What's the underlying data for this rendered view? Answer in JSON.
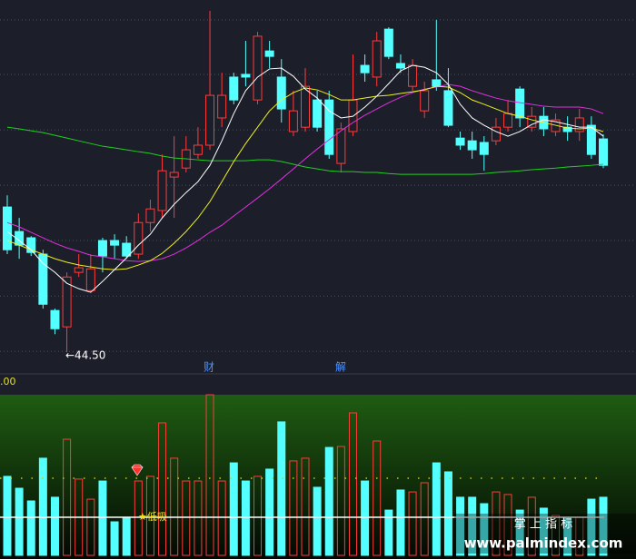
{
  "chart_data": [
    {
      "type": "candlestick",
      "ylim": [
        43.77,
        57.43
      ],
      "grid_levels": [
        56.7,
        54.7,
        52.66,
        50.63,
        48.6,
        46.56,
        44.53
      ],
      "up_color": "#ff3b3b",
      "down_color": "#54ffff",
      "open": [
        49.83,
        48.93,
        48.7,
        48.1,
        46.03,
        45.43,
        47.43,
        46.76,
        48.6,
        48.6,
        48.5,
        48.1,
        49.26,
        49.7,
        50.93,
        51.26,
        51.76,
        52.1,
        53.1,
        54.6,
        54.7,
        53.76,
        55.56,
        54.6,
        52.6,
        52.76,
        53.76,
        53.76,
        51.43,
        52.6,
        55.03,
        54.6,
        56.36,
        55.1,
        54.26,
        53.36,
        54.5,
        54.1,
        52.36,
        52.26,
        52.2,
        52.26,
        52.76,
        54.16,
        52.76,
        53.16,
        52.6,
        52.76,
        52.6,
        52.83,
        52.33
      ],
      "high": [
        50.26,
        49.43,
        48.76,
        48.26,
        46.1,
        47.43,
        48.1,
        48.1,
        48.7,
        48.83,
        48.76,
        49.6,
        50.1,
        51.76,
        52.43,
        52.43,
        52.76,
        57.03,
        54.76,
        54.76,
        55.93,
        56.26,
        55.93,
        55.26,
        54.1,
        54.93,
        54.1,
        54.1,
        52.93,
        55.43,
        55.43,
        56.26,
        56.43,
        55.43,
        55.26,
        54.43,
        56.7,
        54.93,
        52.6,
        52.6,
        52.43,
        53.1,
        53.76,
        54.26,
        53.5,
        53.5,
        53.26,
        53.16,
        53.43,
        53.16,
        52.5
      ],
      "low": [
        48.1,
        47.93,
        48.03,
        46.1,
        45.16,
        44.5,
        47.26,
        46.7,
        47.43,
        47.93,
        47.93,
        47.93,
        48.93,
        49.43,
        49.43,
        51.1,
        51.6,
        51.93,
        52.76,
        53.6,
        54.26,
        53.6,
        54.93,
        52.93,
        52.43,
        52.6,
        52.6,
        51.6,
        51.1,
        52.43,
        54.43,
        54.26,
        55.26,
        54.76,
        54.1,
        53.1,
        54.1,
        52.76,
        51.93,
        51.6,
        51.16,
        52.1,
        52.6,
        52.76,
        52.6,
        52.43,
        52.43,
        52.26,
        52.26,
        51.6,
        51.26
      ],
      "close": [
        48.26,
        48.43,
        48.16,
        46.26,
        45.36,
        47.26,
        47.6,
        47.56,
        48.03,
        48.43,
        48.03,
        49.26,
        49.76,
        51.16,
        51.1,
        51.93,
        52.1,
        53.93,
        53.93,
        53.76,
        54.6,
        56.1,
        55.36,
        53.43,
        53.36,
        54.26,
        52.76,
        51.76,
        52.7,
        53.76,
        54.76,
        55.93,
        55.36,
        54.93,
        55.03,
        54.1,
        54.26,
        52.83,
        52.1,
        51.93,
        51.76,
        52.76,
        53.26,
        53.1,
        53.16,
        52.7,
        53.03,
        52.6,
        53.1,
        51.76,
        51.36
      ],
      "lines": [
        {
          "color": "#20d020",
          "values": [
            52.76,
            52.7,
            52.63,
            52.56,
            52.46,
            52.36,
            52.26,
            52.16,
            52.06,
            52.0,
            51.93,
            51.86,
            51.8,
            51.7,
            51.63,
            51.6,
            51.56,
            51.53,
            51.53,
            51.53,
            51.53,
            51.56,
            51.56,
            51.5,
            51.4,
            51.3,
            51.23,
            51.16,
            51.13,
            51.13,
            51.1,
            51.1,
            51.06,
            51.03,
            51.03,
            51.03,
            51.03,
            51.03,
            51.03,
            51.03,
            51.06,
            51.1,
            51.13,
            51.16,
            51.2,
            51.23,
            51.26,
            51.3,
            51.33,
            51.36,
            51.4
          ]
        },
        {
          "color": "#e030e0",
          "values": [
            49.26,
            49.1,
            48.9,
            48.7,
            48.5,
            48.33,
            48.2,
            48.06,
            48.0,
            47.93,
            47.86,
            47.83,
            47.86,
            47.93,
            48.1,
            48.33,
            48.6,
            48.9,
            49.16,
            49.5,
            49.83,
            50.16,
            50.5,
            50.86,
            51.23,
            51.6,
            51.96,
            52.3,
            52.63,
            52.93,
            53.2,
            53.43,
            53.66,
            53.86,
            54.03,
            54.16,
            54.23,
            54.33,
            54.26,
            54.1,
            53.96,
            53.83,
            53.73,
            53.66,
            53.6,
            53.53,
            53.5,
            53.5,
            53.5,
            53.43,
            53.26
          ]
        },
        {
          "color": "#f0f020",
          "values": [
            48.6,
            48.43,
            48.26,
            48.1,
            47.93,
            47.8,
            47.7,
            47.63,
            47.56,
            47.53,
            47.56,
            47.7,
            47.86,
            48.13,
            48.5,
            48.93,
            49.43,
            50.03,
            50.76,
            51.5,
            52.16,
            52.76,
            53.36,
            53.76,
            54.03,
            54.2,
            54.13,
            53.96,
            53.76,
            53.76,
            53.83,
            53.9,
            53.93,
            54.0,
            54.06,
            54.13,
            54.26,
            54.23,
            54.03,
            53.76,
            53.6,
            53.43,
            53.26,
            53.16,
            53.03,
            52.93,
            52.83,
            52.73,
            52.7,
            52.73,
            52.6
          ]
        },
        {
          "color": "#ffffff",
          "values": [
            48.93,
            48.6,
            48.26,
            47.76,
            47.43,
            47.03,
            46.83,
            46.7,
            47.1,
            47.53,
            47.96,
            48.43,
            48.83,
            49.43,
            49.93,
            50.36,
            50.76,
            51.36,
            52.26,
            53.26,
            54.1,
            54.6,
            54.9,
            54.93,
            54.63,
            54.16,
            53.83,
            53.36,
            53.1,
            53.16,
            53.5,
            53.9,
            54.36,
            54.83,
            55.03,
            54.96,
            54.76,
            54.33,
            53.6,
            53.1,
            52.83,
            52.6,
            52.43,
            52.6,
            52.86,
            53.03,
            52.96,
            52.86,
            52.76,
            52.76,
            52.43
          ]
        }
      ],
      "annotations": [
        "←44.50",
        "财",
        "解"
      ]
    },
    {
      "type": "bar",
      "ylim": [
        0,
        100
      ],
      "header": ".00",
      "values": [
        49.2,
        41.8,
        33.9,
        60.5,
        36.2,
        72.3,
        47.5,
        35.0,
        46.3,
        20.9,
        23.7,
        46.3,
        49.2,
        82.5,
        60.5,
        46.3,
        46.3,
        100,
        46.3,
        57.6,
        46.3,
        49.2,
        53.7,
        83.1,
        58.8,
        60.5,
        42.4,
        67.2,
        67.8,
        88.7,
        46.3,
        71.2,
        28.2,
        40.7,
        39.5,
        45.2,
        57.6,
        52.0,
        36.2,
        36.2,
        32.2,
        39.5,
        37.9,
        28.2,
        36.2,
        29.4,
        24.9,
        23.7,
        23.7,
        35.0,
        36.2
      ],
      "ref_lines": [
        {
          "value": 48.0,
          "color": "#c8c820",
          "dashed": true
        },
        {
          "value": 23.7,
          "color": "#ffffff",
          "dashed": false
        }
      ],
      "signal": "★低吸",
      "watermark": [
        "掌 上 指 标",
        "www.palmindex.com"
      ]
    }
  ]
}
